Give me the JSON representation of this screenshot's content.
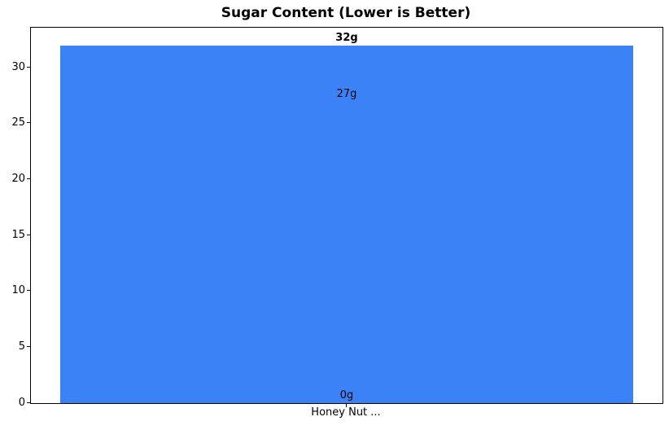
{
  "chart_data": {
    "type": "bar",
    "title": "Sugar Content (Lower is Better)",
    "categories": [
      "Honey Nut ..."
    ],
    "values": [
      32,
      27,
      0
    ],
    "value_labels": [
      "32g",
      "27g",
      "0g"
    ],
    "value_label_emphasis": [
      true,
      false,
      false
    ],
    "bars_share_same_x": true,
    "xlabel": "",
    "ylabel": "",
    "ylim": [
      0,
      33.6
    ],
    "yticks": [
      0,
      5,
      10,
      15,
      20,
      25,
      30
    ],
    "bar_color": "#3b82f6",
    "spine_color": "#000000",
    "text_color": "#000000",
    "background_color": "#ffffff",
    "grid": false,
    "legend": "none"
  }
}
